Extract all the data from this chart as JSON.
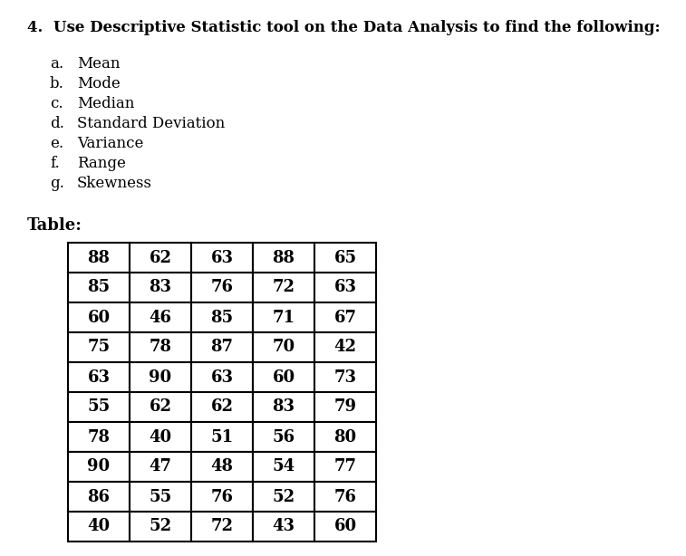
{
  "title": "4.  Use Descriptive Statistic tool on the Data Analysis to find the following:",
  "items": [
    [
      "a.",
      "Mean"
    ],
    [
      "b.",
      "Mode"
    ],
    [
      "c.",
      "Median"
    ],
    [
      "d.",
      "Standard Deviation"
    ],
    [
      "e.",
      "Variance"
    ],
    [
      "f.",
      "Range"
    ],
    [
      "g.",
      "Skewness"
    ]
  ],
  "table_label": "Table:",
  "table_data": [
    [
      88,
      62,
      63,
      88,
      65
    ],
    [
      85,
      83,
      76,
      72,
      63
    ],
    [
      60,
      46,
      85,
      71,
      67
    ],
    [
      75,
      78,
      87,
      70,
      42
    ],
    [
      63,
      90,
      63,
      60,
      73
    ],
    [
      55,
      62,
      62,
      83,
      79
    ],
    [
      78,
      40,
      51,
      56,
      80
    ],
    [
      90,
      47,
      48,
      54,
      77
    ],
    [
      86,
      55,
      76,
      52,
      76
    ],
    [
      40,
      52,
      72,
      43,
      60
    ]
  ],
  "background_color": "#ffffff",
  "text_color": "#000000",
  "title_fontsize": 12,
  "items_fontsize": 12,
  "table_label_fontsize": 13,
  "table_fontsize": 13,
  "n_cols": 5,
  "n_rows": 10
}
